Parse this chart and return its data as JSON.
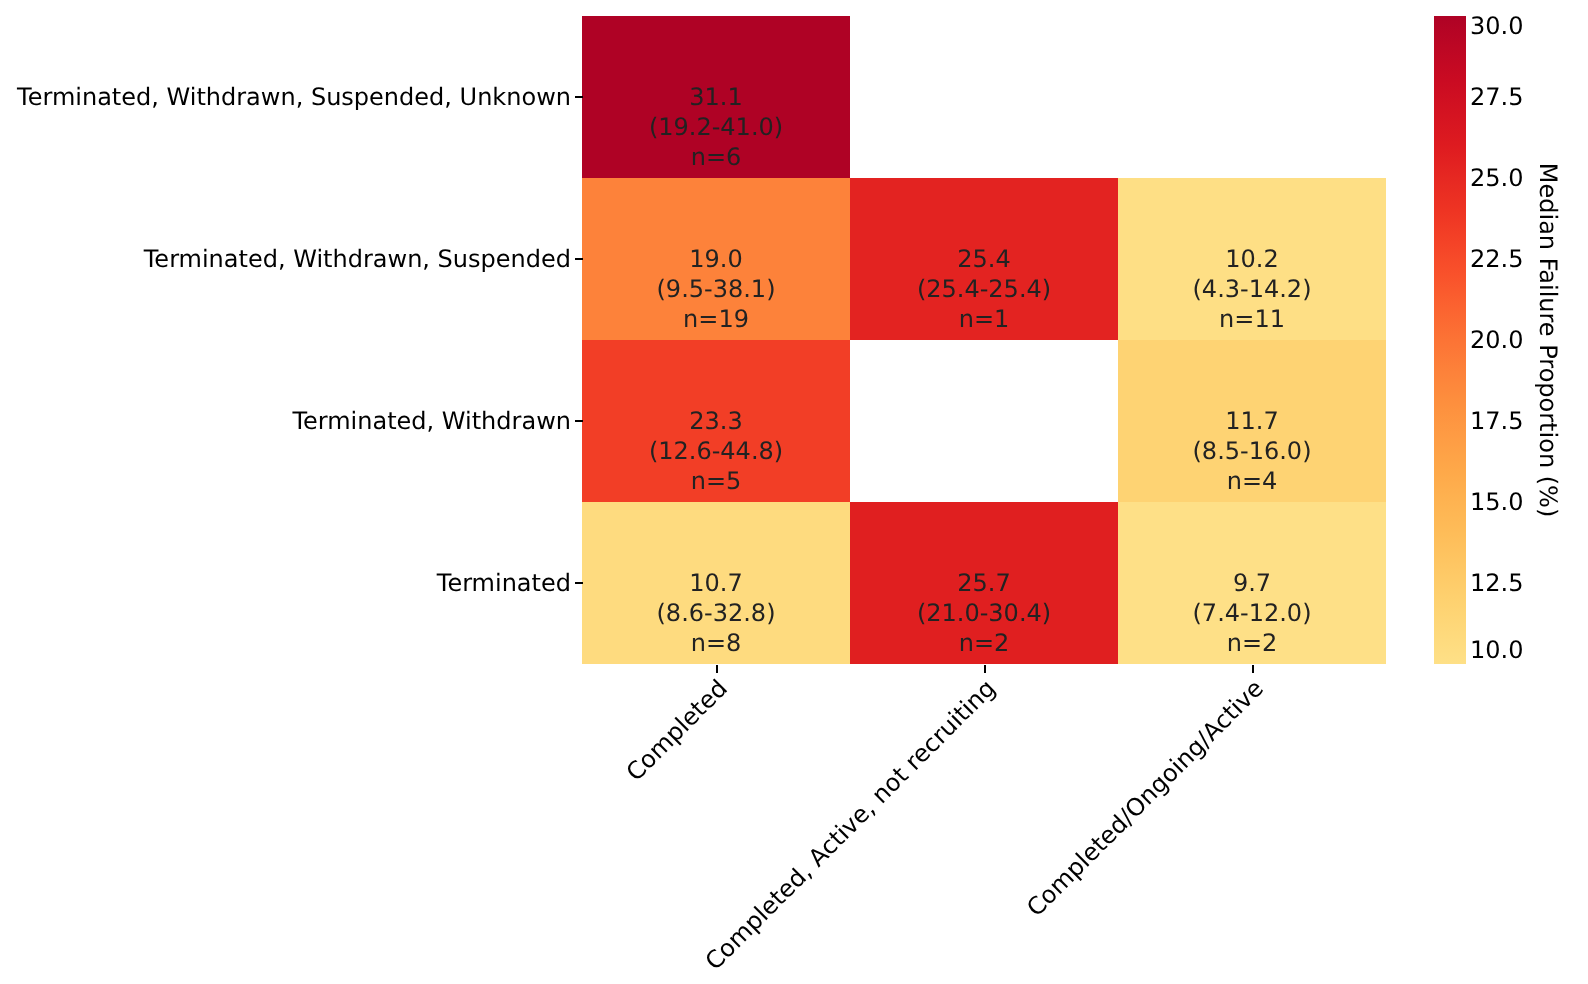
{
  "chart_data": {
    "type": "heatmap",
    "categories": [
      "Completed",
      "Completed, Active, not recruiting",
      "Completed/Ongoing/Active"
    ],
    "y_categories": [
      "Terminated, Withdrawn, Suspended, Unknown",
      "Terminated, Withdrawn, Suspended",
      "Terminated, Withdrawn",
      "Terminated"
    ],
    "cells": [
      [
        31.1,
        null,
        null
      ],
      [
        19.0,
        25.4,
        10.2
      ],
      [
        23.3,
        null,
        11.7
      ],
      [
        10.7,
        25.7,
        9.7
      ]
    ],
    "cell_labels": [
      [
        "31.1\n(19.2-41.0)\nn=6",
        null,
        null
      ],
      [
        "19.0\n(9.5-38.1)\nn=19",
        "25.4\n(25.4-25.4)\nn=1",
        "10.2\n(4.3-14.2)\nn=11"
      ],
      [
        "23.3\n(12.6-44.8)\nn=5",
        null,
        "11.7\n(8.5-16.0)\nn=4"
      ],
      [
        "10.7\n(8.6-32.8)\nn=8",
        "25.7\n(21.0-30.4)\nn=2",
        "9.7\n(7.4-12.0)\nn=2"
      ]
    ],
    "clabel": "Median Failure Proportion (%)",
    "clim": [
      10,
      30
    ],
    "cticks": [
      {
        "value": 10,
        "label": "10.0"
      },
      {
        "value": 12.5,
        "label": "12.5"
      },
      {
        "value": 15,
        "label": "15.0"
      },
      {
        "value": 17.5,
        "label": "17.5"
      },
      {
        "value": 20,
        "label": "20.0"
      },
      {
        "value": 22.5,
        "label": "22.5"
      },
      {
        "value": 25,
        "label": "25.0"
      },
      {
        "value": 27.5,
        "label": "27.5"
      },
      {
        "value": 30,
        "label": "30.0"
      }
    ]
  }
}
